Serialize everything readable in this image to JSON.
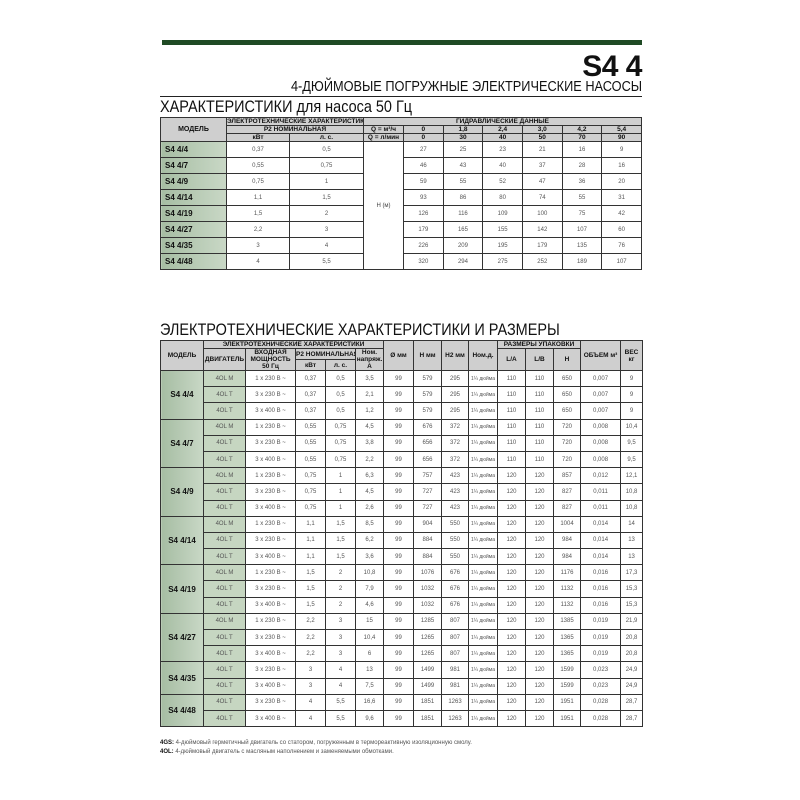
{
  "header": {
    "series": "S4 4",
    "subtitle": "4-ДЮЙМОВЫЕ ПОГРУЖНЫЕ ЭЛЕКТРИЧЕСКИЕ НАСОСЫ",
    "accent": "#1f4a24"
  },
  "table1": {
    "title": "ХАРАКТЕРИСТИКИ для насоса 50 Гц",
    "h_model": "МОДЕЛЬ",
    "h_electro": "ЭЛЕКТРОТЕХНИЧЕСКИЕ ХАРАКТЕРИСТИКИ",
    "h_hydro": "ГИДРАВЛИЧЕСКИЕ ДАННЫЕ",
    "h_p2": "P2 НОМИНАЛЬНАЯ",
    "h_kw": "кВт",
    "h_hp": "л. с.",
    "h_q1": "Q = м³/ч",
    "h_q2": "Q = л/мин",
    "q_m3h": [
      "0",
      "1,8",
      "2,4",
      "3,0",
      "4,2",
      "5,4"
    ],
    "q_lmin": [
      "0",
      "30",
      "40",
      "50",
      "70",
      "90"
    ],
    "h_label": "H (м)",
    "rows": [
      [
        "S4 4/4",
        "0,37",
        "0,5",
        [
          "27",
          "25",
          "23",
          "21",
          "16",
          "9"
        ]
      ],
      [
        "S4 4/7",
        "0,55",
        "0,75",
        [
          "46",
          "43",
          "40",
          "37",
          "28",
          "16"
        ]
      ],
      [
        "S4 4/9",
        "0,75",
        "1",
        [
          "59",
          "55",
          "52",
          "47",
          "36",
          "20"
        ]
      ],
      [
        "S4 4/14",
        "1,1",
        "1,5",
        [
          "93",
          "86",
          "80",
          "74",
          "55",
          "31"
        ]
      ],
      [
        "S4 4/19",
        "1,5",
        "2",
        [
          "126",
          "116",
          "109",
          "100",
          "75",
          "42"
        ]
      ],
      [
        "S4 4/27",
        "2,2",
        "3",
        [
          "179",
          "165",
          "155",
          "142",
          "107",
          "60"
        ]
      ],
      [
        "S4 4/35",
        "3",
        "4",
        [
          "226",
          "209",
          "195",
          "179",
          "135",
          "76"
        ]
      ],
      [
        "S4 4/48",
        "4",
        "5,5",
        [
          "320",
          "294",
          "275",
          "252",
          "189",
          "107"
        ]
      ]
    ]
  },
  "table2": {
    "title": "ЭЛЕКТРОТЕХНИЧЕСКИЕ ХАРАКТЕРИСТИКИ И РАЗМЕРЫ",
    "headers": {
      "model": "МОДЕЛЬ",
      "electro": "ЭЛЕКТРОТЕХНИЧЕСКИЕ ХАРАКТЕРИСТИКИ",
      "engine": "ДВИГАТЕЛЬ",
      "input": "ВХОДНАЯ МОЩНОСТЬ 50 Гц",
      "p2": "P2 НОМИНАЛЬНАЯ",
      "kw": "кВт",
      "hp": "л. с.",
      "amp": "Ном. напряж. А",
      "dia": "Ø мм",
      "h": "H мм",
      "h2": "H2 мм",
      "nomd": "Ном.д.",
      "pack": "РАЗМЕРЫ УПАКОВКИ",
      "la": "L/A",
      "lb": "L/B",
      "ph": "H",
      "vol": "ОБЪЕМ м³",
      "weight": "ВЕС кг"
    },
    "groups": [
      {
        "model": "S4 4/4",
        "rows": [
          [
            "4OL M",
            "1 x 230 В ~",
            "0,37",
            "0,5",
            "3,5",
            "99",
            "579",
            "295",
            "1¼ дюйма",
            "110",
            "110",
            "650",
            "0,007",
            "9"
          ],
          [
            "4OL T",
            "3 x 230 В ~",
            "0,37",
            "0,5",
            "2,1",
            "99",
            "579",
            "295",
            "1¼ дюйма",
            "110",
            "110",
            "650",
            "0,007",
            "9"
          ],
          [
            "4OL T",
            "3 x 400 В ~",
            "0,37",
            "0,5",
            "1,2",
            "99",
            "579",
            "295",
            "1¼ дюйма",
            "110",
            "110",
            "650",
            "0,007",
            "9"
          ]
        ]
      },
      {
        "model": "S4 4/7",
        "rows": [
          [
            "4OL M",
            "1 x 230 В ~",
            "0,55",
            "0,75",
            "4,5",
            "99",
            "676",
            "372",
            "1¼ дюйма",
            "110",
            "110",
            "720",
            "0,008",
            "10,4"
          ],
          [
            "4OL T",
            "3 x 230 В ~",
            "0,55",
            "0,75",
            "3,8",
            "99",
            "656",
            "372",
            "1¼ дюйма",
            "110",
            "110",
            "720",
            "0,008",
            "9,5"
          ],
          [
            "4OL T",
            "3 x 400 В ~",
            "0,55",
            "0,75",
            "2,2",
            "99",
            "656",
            "372",
            "1¼ дюйма",
            "110",
            "110",
            "720",
            "0,008",
            "9,5"
          ]
        ]
      },
      {
        "model": "S4 4/9",
        "rows": [
          [
            "4OL M",
            "1 x 230 В ~",
            "0,75",
            "1",
            "6,3",
            "99",
            "757",
            "423",
            "1¼ дюйма",
            "120",
            "120",
            "857",
            "0,012",
            "12,1"
          ],
          [
            "4OL T",
            "3 x 230 В ~",
            "0,75",
            "1",
            "4,5",
            "99",
            "727",
            "423",
            "1¼ дюйма",
            "120",
            "120",
            "827",
            "0,011",
            "10,8"
          ],
          [
            "4OL T",
            "3 x 400 В ~",
            "0,75",
            "1",
            "2,6",
            "99",
            "727",
            "423",
            "1¼ дюйма",
            "120",
            "120",
            "827",
            "0,011",
            "10,8"
          ]
        ]
      },
      {
        "model": "S4 4/14",
        "rows": [
          [
            "4OL M",
            "1 x 230 В ~",
            "1,1",
            "1,5",
            "8,5",
            "99",
            "904",
            "550",
            "1¼ дюйма",
            "120",
            "120",
            "1004",
            "0,014",
            "14"
          ],
          [
            "4OL T",
            "3 x 230 В ~",
            "1,1",
            "1,5",
            "6,2",
            "99",
            "884",
            "550",
            "1¼ дюйма",
            "120",
            "120",
            "984",
            "0,014",
            "13"
          ],
          [
            "4OL T",
            "3 x 400 В ~",
            "1,1",
            "1,5",
            "3,6",
            "99",
            "884",
            "550",
            "1¼ дюйма",
            "120",
            "120",
            "984",
            "0,014",
            "13"
          ]
        ]
      },
      {
        "model": "S4 4/19",
        "rows": [
          [
            "4OL M",
            "1 x 230 В ~",
            "1,5",
            "2",
            "10,8",
            "99",
            "1076",
            "676",
            "1¼ дюйма",
            "120",
            "120",
            "1176",
            "0,016",
            "17,3"
          ],
          [
            "4OL T",
            "3 x 230 В ~",
            "1,5",
            "2",
            "7,9",
            "99",
            "1032",
            "676",
            "1¼ дюйма",
            "120",
            "120",
            "1132",
            "0,016",
            "15,3"
          ],
          [
            "4OL T",
            "3 x 400 В ~",
            "1,5",
            "2",
            "4,6",
            "99",
            "1032",
            "676",
            "1¼ дюйма",
            "120",
            "120",
            "1132",
            "0,016",
            "15,3"
          ]
        ]
      },
      {
        "model": "S4 4/27",
        "rows": [
          [
            "4OL M",
            "1 x 230 В ~",
            "2,2",
            "3",
            "15",
            "99",
            "1285",
            "807",
            "1¼ дюйма",
            "120",
            "120",
            "1385",
            "0,019",
            "21,9"
          ],
          [
            "4OL T",
            "3 x 230 В ~",
            "2,2",
            "3",
            "10,4",
            "99",
            "1265",
            "807",
            "1¼ дюйма",
            "120",
            "120",
            "1365",
            "0,019",
            "20,8"
          ],
          [
            "4OL T",
            "3 x 400 В ~",
            "2,2",
            "3",
            "6",
            "99",
            "1265",
            "807",
            "1¼ дюйма",
            "120",
            "120",
            "1365",
            "0,019",
            "20,8"
          ]
        ]
      },
      {
        "model": "S4 4/35",
        "rows": [
          [
            "4OL T",
            "3 x 230 В ~",
            "3",
            "4",
            "13",
            "99",
            "1499",
            "981",
            "1¼ дюйма",
            "120",
            "120",
            "1599",
            "0,023",
            "24,9"
          ],
          [
            "4OL T",
            "3 x 400 В ~",
            "3",
            "4",
            "7,5",
            "99",
            "1499",
            "981",
            "1¼ дюйма",
            "120",
            "120",
            "1599",
            "0,023",
            "24,9"
          ]
        ]
      },
      {
        "model": "S4 4/48",
        "rows": [
          [
            "4OL T",
            "3 x 230 В ~",
            "4",
            "5,5",
            "16,6",
            "99",
            "1851",
            "1263",
            "1¼ дюйма",
            "120",
            "120",
            "1951",
            "0,028",
            "28,7"
          ],
          [
            "4OL T",
            "3 x 400 В ~",
            "4",
            "5,5",
            "9,6",
            "99",
            "1851",
            "1263",
            "1¼ дюйма",
            "120",
            "120",
            "1951",
            "0,028",
            "28,7"
          ]
        ]
      }
    ]
  },
  "notes": [
    {
      "key": "4GS:",
      "text": " 4-дюймовый герметичный двигатель со статором, погруженным в термореактивную изоляционную смолу."
    },
    {
      "key": "4OL:",
      "text": " 4-дюймовый двигатель с масляным наполнением и заменяемыми обмотками."
    }
  ]
}
